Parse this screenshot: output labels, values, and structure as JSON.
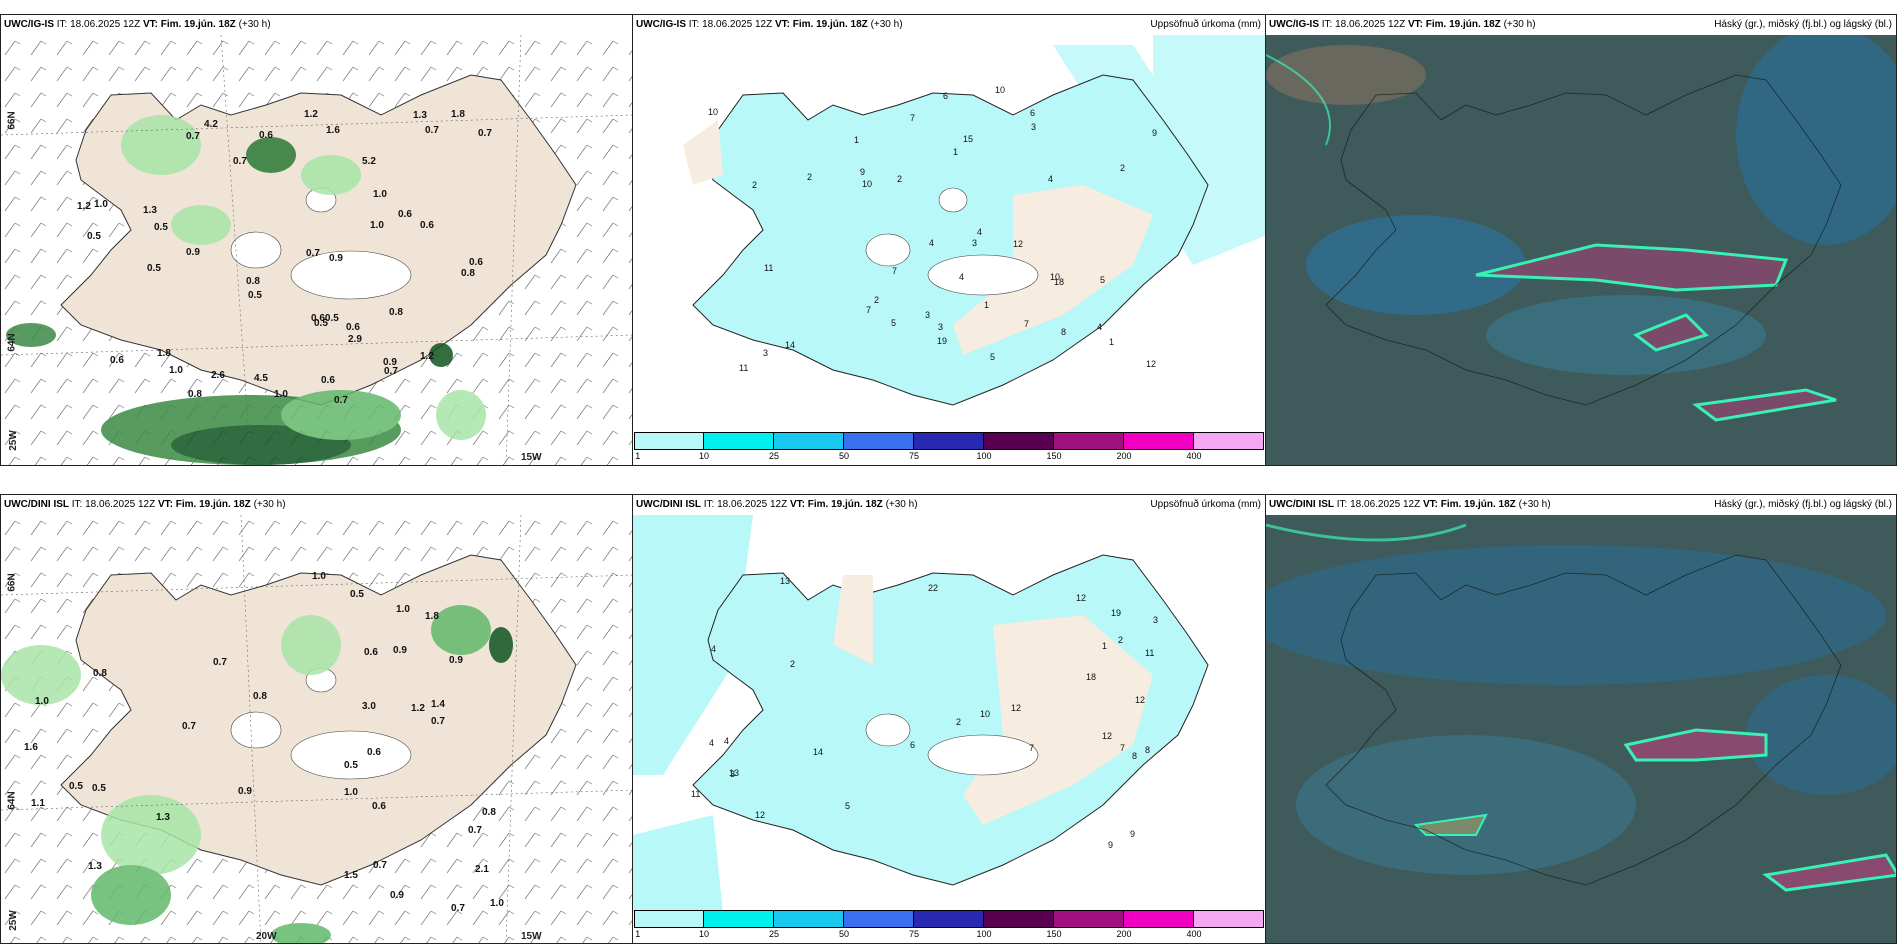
{
  "panels": [
    {
      "model": "UWC/IG-IS",
      "it_label": "IT:",
      "it_value": "18.06.2025 12Z",
      "vt_label": "VT:",
      "vt_value": "Fim. 19.jún. 18Z",
      "lead": "(+30 h)",
      "right_title": ""
    },
    {
      "model": "UWC/IG-IS",
      "it_label": "IT:",
      "it_value": "18.06.2025 12Z",
      "vt_label": "VT:",
      "vt_value": "Fim. 19.jún. 18Z",
      "lead": "(+30 h)",
      "right_title": "Uppsöfnuð úrkoma (mm)"
    },
    {
      "model": "UWC/IG-IS",
      "it_label": "IT:",
      "it_value": "18.06.2025 12Z",
      "vt_label": "VT:",
      "vt_value": "Fim. 19.jún. 18Z",
      "lead": "(+30 h)",
      "right_title": "Háský (gr.), miðský (fj.bl.) og lágský (bl.)"
    },
    {
      "model": "UWC/DINI ISL",
      "it_label": "IT:",
      "it_value": "18.06.2025 12Z",
      "vt_label": "VT:",
      "vt_value": "Fim. 19.jún. 18Z",
      "lead": "(+30 h)",
      "right_title": ""
    },
    {
      "model": "UWC/DINI ISL",
      "it_label": "IT:",
      "it_value": "18.06.2025 12Z",
      "vt_label": "VT:",
      "vt_value": "Fim. 19.jún. 18Z",
      "lead": "(+30 h)",
      "right_title": "Uppsöfnuð úrkoma (mm)"
    },
    {
      "model": "UWC/DINI ISL",
      "it_label": "IT:",
      "it_value": "18.06.2025 12Z",
      "vt_label": "VT:",
      "vt_value": "Fim. 19.jún. 18Z",
      "lead": "(+30 h)",
      "right_title": "Háský (gr.), miðský (fj.bl.) og lágský (bl.)"
    }
  ],
  "colorbar": {
    "ticks": [
      "1",
      "10",
      "25",
      "50",
      "75",
      "100",
      "150",
      "200",
      "400"
    ],
    "colors": [
      "#b8f8f8",
      "#00f0f0",
      "#18c8ee",
      "#3870f0",
      "#2828b0",
      "#5a0050",
      "#a0107e",
      "#f000c0",
      "#f4a8f4"
    ]
  },
  "axis_labels": {
    "lat66": "66N",
    "lat64": "64N",
    "lon25": "25W",
    "lon20": "20W",
    "lon15": "15W"
  },
  "values_top_left": [
    "0.7",
    "0.7",
    "1.8",
    "1.3",
    "0.6",
    "0.6",
    "0.8",
    "0.9",
    "0.5",
    "1.0",
    "0.6",
    "1.2",
    "0.8",
    "0.60.5",
    "1.0",
    "1.3",
    "0.5",
    "0.7",
    "0.8",
    "0.6",
    "0.9",
    "0.5",
    "0.8",
    "0.7",
    "0.9",
    "1.0",
    "0.5",
    "0.5",
    "1.0",
    "0.7",
    "2.9",
    "1.8",
    "5.2",
    "2.6",
    "4.2",
    "4.5",
    "1.2",
    "1.0",
    "0.6",
    "0.6",
    "0.6",
    "0.7",
    "0.7",
    "1.2",
    "1.6"
  ],
  "values_top_mid": [
    "3",
    "5",
    "4",
    "4",
    "7",
    "10",
    "4",
    "6",
    "8",
    "7",
    "12",
    "10",
    "5",
    "6",
    "7",
    "9",
    "10",
    "11",
    "4",
    "9",
    "10",
    "14",
    "19",
    "12",
    "18",
    "3",
    "2",
    "1",
    "2",
    "1",
    "1",
    "7",
    "15",
    "11",
    "3",
    "5",
    "3",
    "4",
    "2",
    "3",
    "2",
    "2",
    "1"
  ],
  "values_bot_left": [
    "1.0",
    "0.8",
    "1.2",
    "0.7",
    "1.5",
    "0.9",
    "1.4",
    "0.8",
    "2.1",
    "0.9",
    "0.6",
    "0.5",
    "1.1",
    "0.6",
    "1.3",
    "0.7",
    "1.8",
    "0.5",
    "1.0",
    "0.7",
    "0.9",
    "1.6",
    "3.0",
    "0.5",
    "0.7",
    "1.3",
    "0.8",
    "0.6",
    "1.0",
    "0.5",
    "0.9",
    "1.0",
    "1.0",
    "0.7",
    "0.7"
  ],
  "values_bot_mid": [
    "2",
    "3",
    "4",
    "5",
    "7",
    "12",
    "9",
    "14",
    "12",
    "13",
    "22",
    "11",
    "10",
    "11",
    "12",
    "6",
    "8",
    "4",
    "13",
    "18",
    "19",
    "12",
    "9",
    "7",
    "3",
    "2",
    "1",
    "2",
    "4",
    "12",
    "8"
  ]
}
